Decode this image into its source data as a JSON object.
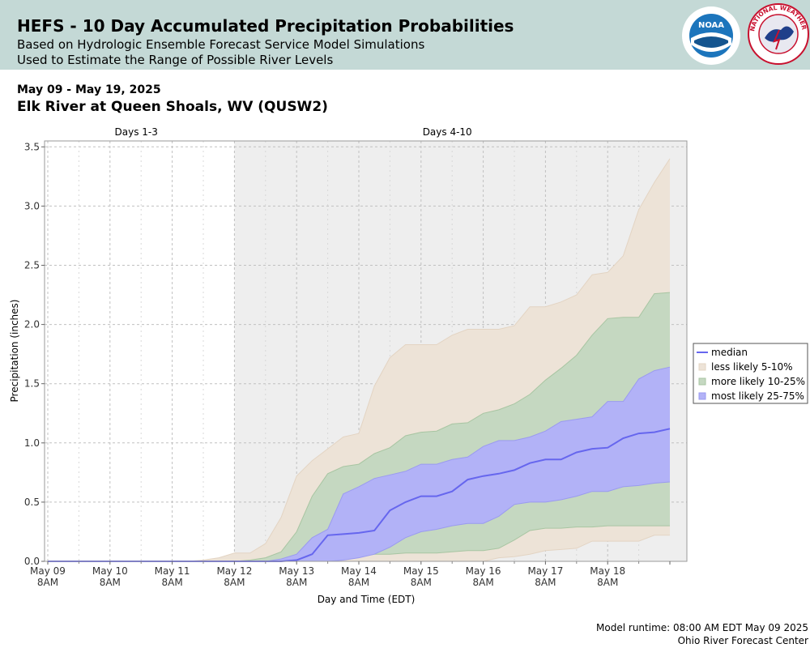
{
  "header": {
    "title": "HEFS - 10 Day Accumulated Precipitation Probabilities",
    "subtitle_line1": "Based on Hydrologic Ensemble Forecast Service Model Simulations",
    "subtitle_line2": "Used to Estimate the Range of Possible River Levels",
    "noaa_logo_text": "NOAA",
    "nws_logo_text": "NATIONAL WEATHER SERVICE"
  },
  "date_range": "May 09 - May 19, 2025",
  "location": "Elk River at Queen Shoals, WV (QUSW2)",
  "footer": {
    "runtime": "Model runtime: 08:00 AM EDT May 09 2025",
    "center": "Ohio River Forecast Center"
  },
  "colors": {
    "header_bg": "#c4d9d6",
    "band_5_10": "#ede3d7",
    "band_10_25": "#c5d8c1",
    "band_25_75": "#b2b2f7",
    "median_line": "#6666ee",
    "days_4_10_bg": "#eeeeee"
  },
  "chart_data": {
    "type": "area",
    "xlabel": "Day and Time (EDT)",
    "ylabel": "Precipitation (inches)",
    "ylim": [
      0,
      3.55
    ],
    "yticks": [
      "0.0",
      "0.5",
      "1.0",
      "1.5",
      "2.0",
      "2.5",
      "3.0",
      "3.5"
    ],
    "xlim_hours": [
      0,
      246
    ],
    "xticks": [
      {
        "line1": "May 09",
        "line2": "8AM",
        "hour": 0
      },
      {
        "line1": "May 10",
        "line2": "8AM",
        "hour": 24
      },
      {
        "line1": "May 11",
        "line2": "8AM",
        "hour": 48
      },
      {
        "line1": "May 12",
        "line2": "8AM",
        "hour": 72
      },
      {
        "line1": "May 13",
        "line2": "8AM",
        "hour": 96
      },
      {
        "line1": "May 14",
        "line2": "8AM",
        "hour": 120
      },
      {
        "line1": "May 15",
        "line2": "8AM",
        "hour": 144
      },
      {
        "line1": "May 16",
        "line2": "8AM",
        "hour": 168
      },
      {
        "line1": "May 17",
        "line2": "8AM",
        "hour": 192
      },
      {
        "line1": "May 18",
        "line2": "8AM",
        "hour": 216
      }
    ],
    "period_labels": [
      {
        "text": "Days 1-3",
        "start_hour": 0,
        "end_hour": 72
      },
      {
        "text": "Days 4-10",
        "start_hour": 72,
        "end_hour": 240
      }
    ],
    "grid": true,
    "legend_position": "right",
    "legend": [
      {
        "label": "median",
        "kind": "line"
      },
      {
        "label": "less likely 5-10%",
        "kind": "band"
      },
      {
        "label": "more likely 10-25%",
        "kind": "band"
      },
      {
        "label": "most likely 25-75%",
        "kind": "band"
      }
    ],
    "x_hours": [
      0,
      6,
      12,
      18,
      24,
      30,
      36,
      42,
      48,
      54,
      60,
      66,
      72,
      78,
      84,
      90,
      96,
      102,
      108,
      114,
      120,
      126,
      132,
      138,
      144,
      150,
      156,
      162,
      168,
      174,
      180,
      186,
      192,
      198,
      204,
      210,
      216,
      222,
      228,
      234,
      240
    ],
    "series": [
      {
        "name": "less likely 5-10%",
        "band": "p05_p95",
        "lower": [
          0,
          0,
          0,
          0,
          0,
          0,
          0,
          0,
          0,
          0,
          0,
          0,
          0,
          0,
          0,
          0,
          0,
          0,
          0,
          0,
          0,
          0,
          0,
          0,
          0,
          0,
          0,
          0,
          0,
          0.03,
          0.04,
          0.06,
          0.09,
          0.1,
          0.11,
          0.17,
          0.17,
          0.17,
          0.17,
          0.22,
          0.22
        ],
        "upper": [
          0,
          0,
          0,
          0,
          0,
          0,
          0,
          0,
          0,
          0,
          0.01,
          0.03,
          0.07,
          0.07,
          0.15,
          0.37,
          0.72,
          0.85,
          0.95,
          1.05,
          1.08,
          1.48,
          1.72,
          1.83,
          1.83,
          1.83,
          1.91,
          1.96,
          1.96,
          1.96,
          1.99,
          2.15,
          2.15,
          2.19,
          2.25,
          2.42,
          2.44,
          2.58,
          2.97,
          3.2,
          3.4
        ]
      },
      {
        "name": "more likely 10-25%",
        "band": "p10_p90",
        "lower": [
          0,
          0,
          0,
          0,
          0,
          0,
          0,
          0,
          0,
          0,
          0,
          0,
          0,
          0,
          0,
          0,
          0,
          0,
          0.03,
          0.03,
          0.04,
          0.06,
          0.06,
          0.07,
          0.07,
          0.07,
          0.08,
          0.09,
          0.09,
          0.11,
          0.18,
          0.26,
          0.28,
          0.28,
          0.29,
          0.29,
          0.3,
          0.3,
          0.3,
          0.3,
          0.3
        ],
        "upper": [
          0,
          0,
          0,
          0,
          0,
          0,
          0,
          0,
          0,
          0,
          0,
          0,
          0,
          0.01,
          0.03,
          0.08,
          0.25,
          0.55,
          0.74,
          0.8,
          0.82,
          0.91,
          0.96,
          1.06,
          1.09,
          1.1,
          1.16,
          1.17,
          1.25,
          1.28,
          1.33,
          1.41,
          1.53,
          1.63,
          1.74,
          1.91,
          2.05,
          2.06,
          2.06,
          2.26,
          2.27
        ]
      },
      {
        "name": "most likely 25-75%",
        "band": "p25_p75",
        "lower": [
          0,
          0,
          0,
          0,
          0,
          0,
          0,
          0,
          0,
          0,
          0,
          0,
          0,
          0,
          0,
          0,
          0,
          0,
          0,
          0.01,
          0.03,
          0.06,
          0.12,
          0.2,
          0.25,
          0.27,
          0.3,
          0.32,
          0.32,
          0.38,
          0.48,
          0.5,
          0.5,
          0.52,
          0.55,
          0.59,
          0.59,
          0.63,
          0.64,
          0.66,
          0.67
        ],
        "upper": [
          0,
          0,
          0,
          0,
          0,
          0,
          0,
          0,
          0,
          0,
          0,
          0,
          0,
          0,
          0,
          0.02,
          0.06,
          0.2,
          0.27,
          0.57,
          0.63,
          0.7,
          0.73,
          0.76,
          0.82,
          0.82,
          0.86,
          0.88,
          0.97,
          1.02,
          1.02,
          1.05,
          1.1,
          1.18,
          1.2,
          1.22,
          1.35,
          1.35,
          1.54,
          1.61,
          1.64
        ]
      },
      {
        "name": "median",
        "band": "median",
        "values": [
          0,
          0,
          0,
          0,
          0,
          0,
          0,
          0,
          0,
          0,
          0,
          0,
          0,
          0,
          0,
          0,
          0.01,
          0.06,
          0.22,
          0.23,
          0.24,
          0.26,
          0.43,
          0.5,
          0.55,
          0.55,
          0.59,
          0.69,
          0.72,
          0.74,
          0.77,
          0.83,
          0.86,
          0.86,
          0.92,
          0.95,
          0.96,
          1.04,
          1.08,
          1.09,
          1.12
        ]
      }
    ]
  }
}
